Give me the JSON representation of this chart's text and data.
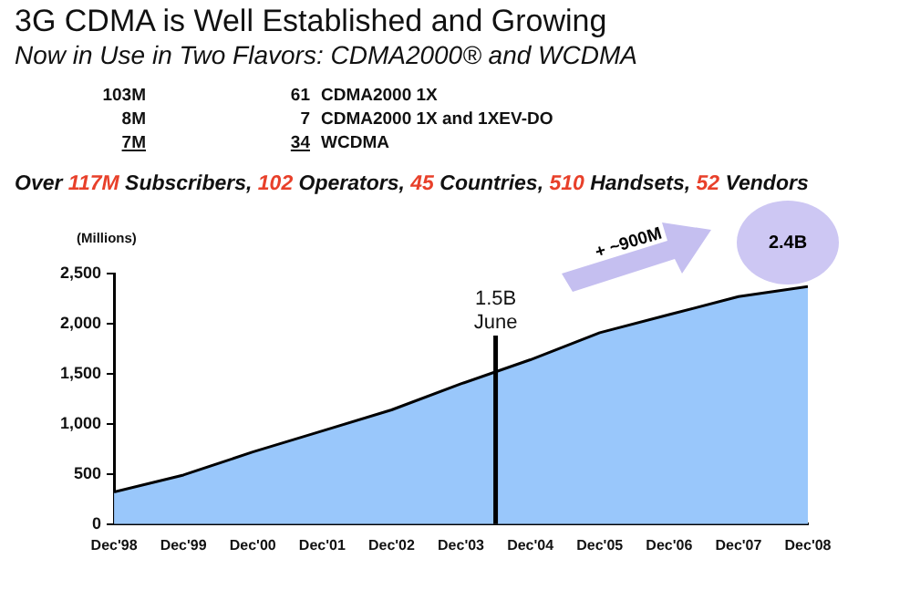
{
  "chart_data": {
    "type": "area",
    "title": "3G CDMA is Well Established and Growing",
    "subtitle": "Now in Use in Two Flavors: CDMA2000® and WCDMA",
    "ylabel": "(Millions)",
    "x": [
      "1998-12",
      "1999-12",
      "2000-12",
      "2001-12",
      "2002-12",
      "2003-12",
      "2004-12",
      "2005-12",
      "2006-12",
      "2007-12",
      "2008-12"
    ],
    "series": [
      {
        "color": "#99c7fb",
        "values": [
          320,
          490,
          720,
          930,
          1140,
          1400,
          1640,
          1910,
          2090,
          2270,
          2370
        ]
      }
    ],
    "xlim": [
      "1998-12",
      "2008-12"
    ],
    "xticks": [
      {
        "value": "1998-12",
        "label": "Dec'98"
      },
      {
        "value": "1999-12",
        "label": "Dec'99"
      },
      {
        "value": "2000-12",
        "label": "Dec'00"
      },
      {
        "value": "2001-12",
        "label": "Dec'01"
      },
      {
        "value": "2002-12",
        "label": "Dec'02"
      },
      {
        "value": "2003-12",
        "label": "Dec'03"
      },
      {
        "value": "2004-12",
        "label": "Dec'04"
      },
      {
        "value": "2005-12",
        "label": "Dec'05"
      },
      {
        "value": "2006-12",
        "label": "Dec'06"
      },
      {
        "value": "2007-12",
        "label": "Dec'07"
      },
      {
        "value": "2008-12",
        "label": "Dec'08"
      }
    ],
    "ylim": [
      0,
      2500
    ],
    "yticks": [
      {
        "value": 0,
        "label": "0"
      },
      {
        "value": 500,
        "label": "500"
      },
      {
        "value": 1000,
        "label": "1,000"
      },
      {
        "value": 1500,
        "label": "1,500"
      },
      {
        "value": 2000,
        "label": "2,000"
      },
      {
        "value": 2500,
        "label": "2,500"
      }
    ],
    "ref_lines": [
      {
        "axis": "x",
        "value": "2004-06",
        "label": "1.5B June",
        "color": "#000000"
      }
    ],
    "annotations": [
      "103M",
      "61",
      "CDMA2000 1X",
      "8M",
      "7",
      "CDMA2000 1X and 1XEV-DO",
      "7M",
      "34",
      "WCDMA",
      "Over 117M Subscribers, 102 Operators, 45 Countries, 510 Handsets, 52 Vendors",
      "+ ~900M",
      "2.4B"
    ],
    "grid": false,
    "legend": false,
    "marker": "none"
  }
}
